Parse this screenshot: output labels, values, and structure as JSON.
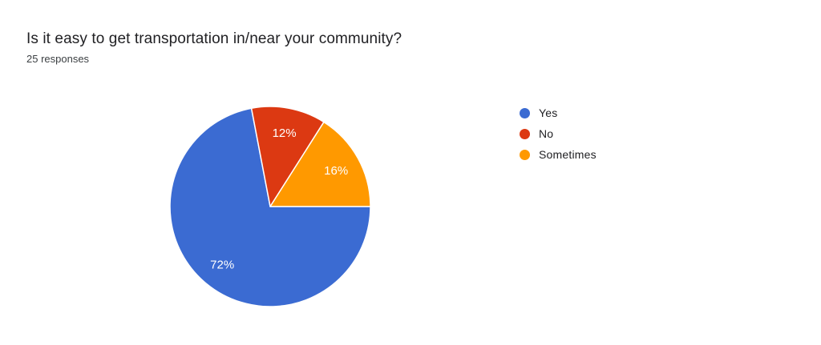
{
  "header": {
    "title": "Is it easy to get transportation in/near your community?",
    "subtitle": "25 responses"
  },
  "chart_data": {
    "type": "pie",
    "title": "Is it easy to get transportation in/near your community?",
    "subtitle": "25 responses",
    "total_responses": 25,
    "categories": [
      "Yes",
      "No",
      "Sometimes"
    ],
    "values": [
      72,
      12,
      16
    ],
    "slices": [
      {
        "label": "Yes",
        "percent": 72,
        "data_label": "72%",
        "color": "#3b6bd2"
      },
      {
        "label": "No",
        "percent": 12,
        "data_label": "12%",
        "color": "#dc3912"
      },
      {
        "label": "Sometimes",
        "percent": 16,
        "data_label": "16%",
        "color": "#ff9900"
      }
    ],
    "layout": {
      "start_angle_deg": 0,
      "direction": "clockwise",
      "legend_position": "right",
      "label_radius_factor": 0.75,
      "radius": 125,
      "slice_label_color": "#ffffff",
      "slice_border_color": "#ffffff",
      "background": "#ffffff"
    }
  }
}
